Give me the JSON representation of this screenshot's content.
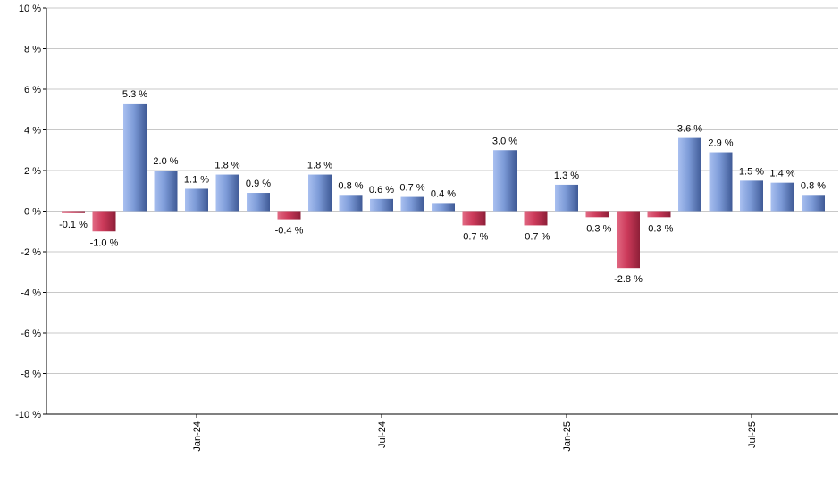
{
  "chart_data": {
    "type": "bar",
    "title": "",
    "xlabel": "",
    "ylabel": "",
    "ylim": [
      -10,
      10
    ],
    "y_ticks": [
      10,
      8,
      6,
      4,
      2,
      0,
      -2,
      -4,
      -6,
      -8,
      -10
    ],
    "y_tick_labels": [
      "10 %",
      "8 %",
      "6 %",
      "4 %",
      "2 %",
      "0 %",
      "-2 %",
      "-4 %",
      "-6 %",
      "-8 %",
      "-10 %"
    ],
    "x_tick_labels": [
      {
        "label": "Jan-24",
        "index": 4
      },
      {
        "label": "Jul-24",
        "index": 10
      },
      {
        "label": "Jan-25",
        "index": 16
      },
      {
        "label": "Jul-25",
        "index": 22
      }
    ],
    "grid": true,
    "values": [
      -0.1,
      -1.0,
      5.3,
      2.0,
      1.1,
      1.8,
      0.9,
      -0.4,
      1.8,
      0.8,
      0.6,
      0.7,
      0.4,
      -0.7,
      3.0,
      -0.7,
      1.3,
      -0.3,
      -2.8,
      -0.3,
      3.6,
      2.9,
      1.5,
      1.4,
      0.8
    ],
    "value_labels": [
      "-0.1 %",
      "-1.0 %",
      "5.3 %",
      "2.0 %",
      "1.1 %",
      "1.8 %",
      "0.9 %",
      "-0.4 %",
      "1.8 %",
      "0.8 %",
      "0.6 %",
      "0.7 %",
      "0.4 %",
      "-0.7 %",
      "3.0 %",
      "-0.7 %",
      "1.3 %",
      "-0.3 %",
      "-2.8 %",
      "-0.3 %",
      "3.6 %",
      "2.9 %",
      "1.5 %",
      "1.4 %",
      "0.8 %"
    ],
    "colors": {
      "positive": "#7d9bd8",
      "positive_dark": "#3f5a96",
      "negative": "#cc3a5a",
      "negative_dark": "#8e1f38",
      "grid": "#c8c8c8",
      "axis": "#000000"
    }
  }
}
